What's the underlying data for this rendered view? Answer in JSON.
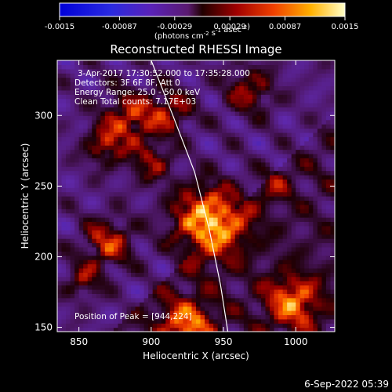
{
  "chart_data": {
    "type": "heatmap",
    "title": "Reconstructed RHESSI Image",
    "xlabel": "Heliocentric X (arcsec)",
    "ylabel": "Heliocentric Y (arcsec)",
    "xlim": [
      835,
      1027
    ],
    "ylim": [
      147,
      339
    ],
    "x_ticks": [
      850,
      900,
      950,
      1000
    ],
    "y_ticks": [
      150,
      200,
      250,
      300
    ],
    "colorbar": {
      "range": [
        -0.0015,
        0.0015
      ],
      "tick_labels": [
        "-0.0015",
        "-0.00087",
        "-0.00029",
        "0.00029",
        "0.00087",
        "0.0015"
      ],
      "tick_values": [
        -0.0015,
        -0.00087,
        -0.00029,
        0.00029,
        0.00087,
        0.0015
      ],
      "label": "(photons cm",
      "label_parts": [
        "(photons cm",
        "-2",
        " s",
        "-1",
        " asec",
        "-2",
        ")"
      ]
    },
    "annotations": [
      "3-Apr-2017 17:30:52.000 to 17:35:28.000",
      "Detectors: 3F 6F 8F, Att 0",
      "Energy Range: 25.0 - 50.0 keV",
      "Clean    Total counts: 7.17E+03"
    ],
    "peak_label": "Position of Peak = [944,224]",
    "peak": [
      944,
      224
    ],
    "limb_curve": [
      [
        900,
        339
      ],
      [
        915,
        300
      ],
      [
        930,
        260
      ],
      [
        940,
        220
      ],
      [
        948,
        180
      ],
      [
        953,
        147
      ]
    ],
    "sources": [
      {
        "x": 940,
        "y": 226,
        "sigma": 17,
        "amp": 0.00155
      },
      {
        "x": 885,
        "y": 298,
        "sigma": 13,
        "amp": 0.0009
      },
      {
        "x": 913,
        "y": 303,
        "sigma": 11,
        "amp": 0.00075
      },
      {
        "x": 868,
        "y": 279,
        "sigma": 10,
        "amp": 0.0007
      },
      {
        "x": 900,
        "y": 267,
        "sigma": 10,
        "amp": 0.00065
      },
      {
        "x": 968,
        "y": 318,
        "sigma": 12,
        "amp": 0.0007
      },
      {
        "x": 870,
        "y": 210,
        "sigma": 12,
        "amp": 0.0009
      },
      {
        "x": 853,
        "y": 183,
        "sigma": 9,
        "amp": 0.0006
      },
      {
        "x": 925,
        "y": 152,
        "sigma": 13,
        "amp": 0.00105
      },
      {
        "x": 998,
        "y": 168,
        "sigma": 13,
        "amp": 0.00105
      },
      {
        "x": 985,
        "y": 252,
        "sigma": 9,
        "amp": 0.0004
      }
    ],
    "background": {
      "level": -0.00045,
      "ripple": 0.00025,
      "diag_low": -0.0002
    }
  },
  "footer": {
    "timestamp": "6-Sep-2022 05:39"
  }
}
